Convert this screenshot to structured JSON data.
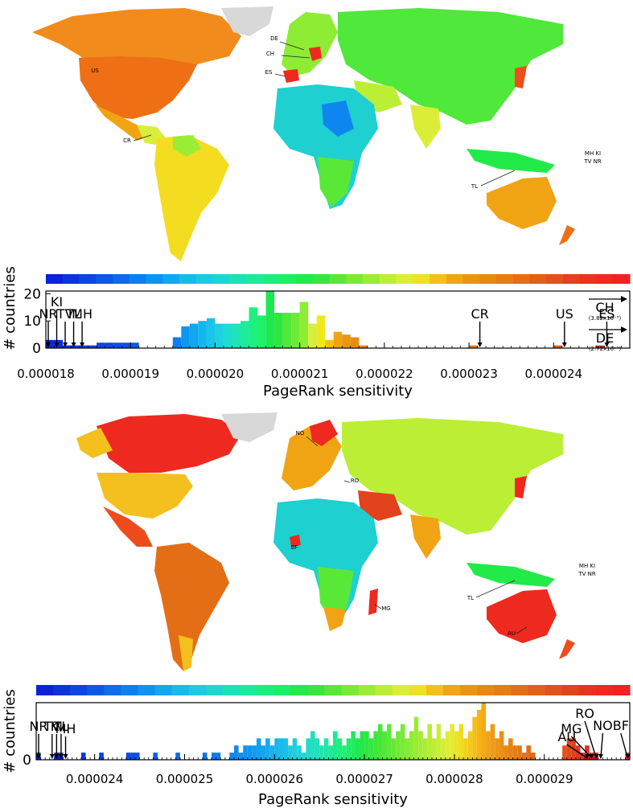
{
  "chart_data": [
    {
      "type": "bar",
      "panel": "top",
      "xlabel": "PageRank sensitivity",
      "ylabel": "# countries",
      "xlim": [
        1.8e-05,
        2.49e-05
      ],
      "ylim": [
        0,
        21
      ],
      "xticks": [
        "0.000018",
        "0.000019",
        "0.000020",
        "0.000021",
        "0.000022",
        "0.000023",
        "0.000024"
      ],
      "xtick_values": [
        1.8e-05,
        1.9e-05,
        2e-05,
        2.1e-05,
        2.2e-05,
        2.3e-05,
        2.4e-05
      ],
      "yticks": [
        "0",
        "10",
        "20"
      ],
      "ytick_values": [
        0,
        10,
        20
      ],
      "bin_width": 1e-07,
      "bins": [
        {
          "x": 1.8e-05,
          "count": 3,
          "color": "#0a28d8"
        },
        {
          "x": 1.81e-05,
          "count": 3,
          "color": "#0a2cdc"
        },
        {
          "x": 1.82e-05,
          "count": 1,
          "color": "#0c34de"
        },
        {
          "x": 1.83e-05,
          "count": 1,
          "color": "#0c38e0"
        },
        {
          "x": 1.84e-05,
          "count": 1,
          "color": "#0c3ce0"
        },
        {
          "x": 1.85e-05,
          "count": 1,
          "color": "#0c40e2"
        },
        {
          "x": 1.86e-05,
          "count": 2,
          "color": "#0c44e4"
        },
        {
          "x": 1.87e-05,
          "count": 2,
          "color": "#0c48e4"
        },
        {
          "x": 1.88e-05,
          "count": 2,
          "color": "#0c4ce6"
        },
        {
          "x": 1.89e-05,
          "count": 2,
          "color": "#0c50e8"
        },
        {
          "x": 1.9e-05,
          "count": 2,
          "color": "#0c56e8"
        },
        {
          "x": 1.95e-05,
          "count": 4,
          "color": "#0c7ef0"
        },
        {
          "x": 1.96e-05,
          "count": 8,
          "color": "#0c96f0"
        },
        {
          "x": 1.97e-05,
          "count": 9,
          "color": "#10a6f0"
        },
        {
          "x": 1.98e-05,
          "count": 10,
          "color": "#14b6ee"
        },
        {
          "x": 1.99e-05,
          "count": 11,
          "color": "#18c4ea"
        },
        {
          "x": 2e-05,
          "count": 9,
          "color": "#1ed0e2"
        },
        {
          "x": 2.01e-05,
          "count": 9,
          "color": "#1edcd0"
        },
        {
          "x": 2.02e-05,
          "count": 9,
          "color": "#1ee4b8"
        },
        {
          "x": 2.03e-05,
          "count": 10,
          "color": "#1eec9c"
        },
        {
          "x": 2.04e-05,
          "count": 15,
          "color": "#1ef080"
        },
        {
          "x": 2.05e-05,
          "count": 12,
          "color": "#1ef068"
        },
        {
          "x": 2.06e-05,
          "count": 21,
          "color": "#1ee850"
        },
        {
          "x": 2.07e-05,
          "count": 13,
          "color": "#2ee63e"
        },
        {
          "x": 2.08e-05,
          "count": 13,
          "color": "#50e83a"
        },
        {
          "x": 2.09e-05,
          "count": 13,
          "color": "#6cea38"
        },
        {
          "x": 2.1e-05,
          "count": 17,
          "color": "#8eec34"
        },
        {
          "x": 2.11e-05,
          "count": 9,
          "color": "#d6ee3c"
        },
        {
          "x": 2.12e-05,
          "count": 12,
          "color": "#f0e81c"
        },
        {
          "x": 2.13e-05,
          "count": 3,
          "color": "#f4c018"
        },
        {
          "x": 2.14e-05,
          "count": 6,
          "color": "#f0a414"
        },
        {
          "x": 2.15e-05,
          "count": 5,
          "color": "#ec9612"
        },
        {
          "x": 2.16e-05,
          "count": 4,
          "color": "#ea8c12"
        },
        {
          "x": 2.17e-05,
          "count": 1,
          "color": "#e88412"
        },
        {
          "x": 2.3e-05,
          "count": 1,
          "color": "#e67a14"
        },
        {
          "x": 2.4e-05,
          "count": 1,
          "color": "#e25a14"
        },
        {
          "x": 2.45e-05,
          "count": 1,
          "color": "#e2321a"
        }
      ],
      "colorbar": [
        "#0b22d8",
        "#0c34dc",
        "#0c46e2",
        "#0c58e6",
        "#0c6cea",
        "#0c80ee",
        "#0e94f0",
        "#12a8ef",
        "#18baea",
        "#1ccae2",
        "#1ed6d0",
        "#1ee0b6",
        "#1ee89a",
        "#1eec7e",
        "#1eee62",
        "#22ea48",
        "#3ae63c",
        "#5ae838",
        "#7aea36",
        "#9aec34",
        "#bcee36",
        "#daee38",
        "#f0e028",
        "#f4c01e",
        "#f0a416",
        "#ec9412",
        "#e88812",
        "#e67c14",
        "#e46e16",
        "#e26018",
        "#e2521a",
        "#e2421c",
        "#e8341e",
        "#ee2a20",
        "#f02222"
      ],
      "annotations": [
        {
          "label": "NR",
          "tip": 1.8e-05,
          "head": 1.8e-05,
          "level": "mid"
        },
        {
          "label": "KI",
          "tip": 1.81e-05,
          "head": 1.82e-05,
          "level": "high"
        },
        {
          "label": "TV",
          "tip": 1.82e-05,
          "head": 1.84e-05,
          "level": "mid"
        },
        {
          "label": "TL",
          "tip": 1.83e-05,
          "head": 1.86e-05,
          "level": "mid"
        },
        {
          "label": "MH",
          "tip": 1.84e-05,
          "head": 1.89e-05,
          "level": "mid"
        },
        {
          "label": "CR",
          "tip": 2.31e-05,
          "head": 2.31e-05,
          "level": "mid"
        },
        {
          "label": "US",
          "tip": 2.41e-05,
          "head": 2.41e-05,
          "level": "mid"
        },
        {
          "label": "ES",
          "tip": 2.46e-05,
          "head": 2.46e-05,
          "level": "mid"
        }
      ],
      "offscale": [
        {
          "label": "CH",
          "value": "(3.82x10⁻⁵)"
        },
        {
          "label": "DE",
          "value": "(2.72x10⁻⁵)"
        }
      ],
      "map_labels": [
        "DE",
        "CH",
        "ES",
        "US",
        "CR",
        "TL",
        "MH KI",
        "TV NR"
      ]
    },
    {
      "type": "bar",
      "panel": "bottom",
      "xlabel": "PageRank sensitivity",
      "ylabel": "# countries",
      "xlim": [
        2.335e-05,
        2.995e-05
      ],
      "ylim": [
        0,
        8
      ],
      "xticks": [
        "0.000024",
        "0.000025",
        "0.000026",
        "0.000027",
        "0.000028",
        "0.000029"
      ],
      "xtick_values": [
        2.4e-05,
        2.5e-05,
        2.6e-05,
        2.7e-05,
        2.8e-05,
        2.9e-05
      ],
      "yticks": [
        "0"
      ],
      "ytick_values": [
        0
      ],
      "bin_width": 5e-08,
      "bins": [
        {
          "x": 2.335e-05,
          "count": 1,
          "color": "#0a28d8"
        },
        {
          "x": 2.355e-05,
          "count": 1,
          "color": "#0a2cdc"
        },
        {
          "x": 2.36e-05,
          "count": 1,
          "color": "#0c30dc"
        },
        {
          "x": 2.385e-05,
          "count": 1,
          "color": "#0c36de"
        },
        {
          "x": 2.405e-05,
          "count": 1,
          "color": "#0c3ce0"
        },
        {
          "x": 2.435e-05,
          "count": 1,
          "color": "#0c4ae4"
        },
        {
          "x": 2.44e-05,
          "count": 1,
          "color": "#0c4ee6"
        },
        {
          "x": 2.445e-05,
          "count": 1,
          "color": "#0c52e6"
        },
        {
          "x": 2.465e-05,
          "count": 1,
          "color": "#0c5ce8"
        },
        {
          "x": 2.49e-05,
          "count": 1,
          "color": "#0c68ea"
        },
        {
          "x": 2.52e-05,
          "count": 1,
          "color": "#0c74ec"
        },
        {
          "x": 2.53e-05,
          "count": 1,
          "color": "#0c7aee"
        },
        {
          "x": 2.535e-05,
          "count": 1,
          "color": "#0c7eee"
        },
        {
          "x": 2.55e-05,
          "count": 1,
          "color": "#0e86f0"
        },
        {
          "x": 2.555e-05,
          "count": 2,
          "color": "#0e8af0"
        },
        {
          "x": 2.56e-05,
          "count": 1,
          "color": "#0e8ef0"
        },
        {
          "x": 2.565e-05,
          "count": 2,
          "color": "#1092f0"
        },
        {
          "x": 2.57e-05,
          "count": 2,
          "color": "#1096f0"
        },
        {
          "x": 2.575e-05,
          "count": 2,
          "color": "#129af0"
        },
        {
          "x": 2.58e-05,
          "count": 3,
          "color": "#12a0f0"
        },
        {
          "x": 2.585e-05,
          "count": 2,
          "color": "#14a6ee"
        },
        {
          "x": 2.59e-05,
          "count": 3,
          "color": "#14aaee"
        },
        {
          "x": 2.595e-05,
          "count": 2,
          "color": "#16b0ee"
        },
        {
          "x": 2.6e-05,
          "count": 3,
          "color": "#18b6ea"
        },
        {
          "x": 2.605e-05,
          "count": 3,
          "color": "#18bce8"
        },
        {
          "x": 2.61e-05,
          "count": 3,
          "color": "#1ac2e6"
        },
        {
          "x": 2.615e-05,
          "count": 2,
          "color": "#1cc8e2"
        },
        {
          "x": 2.62e-05,
          "count": 3,
          "color": "#1ccee0"
        },
        {
          "x": 2.625e-05,
          "count": 2,
          "color": "#1ed4da"
        },
        {
          "x": 2.63e-05,
          "count": 1,
          "color": "#1ed8d2"
        },
        {
          "x": 2.635e-05,
          "count": 3,
          "color": "#1edccc"
        },
        {
          "x": 2.64e-05,
          "count": 4,
          "color": "#1ee0c2"
        },
        {
          "x": 2.645e-05,
          "count": 3,
          "color": "#1ee2b8"
        },
        {
          "x": 2.65e-05,
          "count": 2,
          "color": "#1ee6ae"
        },
        {
          "x": 2.655e-05,
          "count": 3,
          "color": "#1ee8a4"
        },
        {
          "x": 2.66e-05,
          "count": 2,
          "color": "#1eea98"
        },
        {
          "x": 2.665e-05,
          "count": 4,
          "color": "#1eec8c"
        },
        {
          "x": 2.67e-05,
          "count": 3,
          "color": "#1eee80"
        },
        {
          "x": 2.675e-05,
          "count": 2,
          "color": "#1eee74"
        },
        {
          "x": 2.68e-05,
          "count": 3,
          "color": "#1eee68"
        },
        {
          "x": 2.685e-05,
          "count": 4,
          "color": "#1eec5c"
        },
        {
          "x": 2.69e-05,
          "count": 3,
          "color": "#1eea50"
        },
        {
          "x": 2.695e-05,
          "count": 4,
          "color": "#22e848"
        },
        {
          "x": 2.7e-05,
          "count": 4,
          "color": "#2ae842"
        },
        {
          "x": 2.705e-05,
          "count": 3,
          "color": "#34e63e"
        },
        {
          "x": 2.71e-05,
          "count": 4,
          "color": "#3ee63c"
        },
        {
          "x": 2.715e-05,
          "count": 5,
          "color": "#48e63a"
        },
        {
          "x": 2.72e-05,
          "count": 4,
          "color": "#52e838"
        },
        {
          "x": 2.725e-05,
          "count": 5,
          "color": "#5ce838"
        },
        {
          "x": 2.73e-05,
          "count": 3,
          "color": "#66e836"
        },
        {
          "x": 2.735e-05,
          "count": 4,
          "color": "#70ea36"
        },
        {
          "x": 2.74e-05,
          "count": 5,
          "color": "#7aea36"
        },
        {
          "x": 2.745e-05,
          "count": 3,
          "color": "#84ea34"
        },
        {
          "x": 2.75e-05,
          "count": 4,
          "color": "#8eec34"
        },
        {
          "x": 2.755e-05,
          "count": 6,
          "color": "#98ec34"
        },
        {
          "x": 2.76e-05,
          "count": 4,
          "color": "#a2ec34"
        },
        {
          "x": 2.765e-05,
          "count": 3,
          "color": "#acec36"
        },
        {
          "x": 2.77e-05,
          "count": 5,
          "color": "#b6ee36"
        },
        {
          "x": 2.775e-05,
          "count": 3,
          "color": "#c0ee36"
        },
        {
          "x": 2.78e-05,
          "count": 5,
          "color": "#caee38"
        },
        {
          "x": 2.785e-05,
          "count": 3,
          "color": "#d4ee38"
        },
        {
          "x": 2.79e-05,
          "count": 4,
          "color": "#deee38"
        },
        {
          "x": 2.795e-05,
          "count": 5,
          "color": "#e6ea30"
        },
        {
          "x": 2.8e-05,
          "count": 4,
          "color": "#ece428"
        },
        {
          "x": 2.805e-05,
          "count": 5,
          "color": "#f0dc22"
        },
        {
          "x": 2.81e-05,
          "count": 3,
          "color": "#f2d21e"
        },
        {
          "x": 2.815e-05,
          "count": 4,
          "color": "#f4c81c"
        },
        {
          "x": 2.82e-05,
          "count": 6,
          "color": "#f4be1a"
        },
        {
          "x": 2.825e-05,
          "count": 7,
          "color": "#f4b418"
        },
        {
          "x": 2.83e-05,
          "count": 8,
          "color": "#f2aa16"
        },
        {
          "x": 2.835e-05,
          "count": 4,
          "color": "#f0a214"
        },
        {
          "x": 2.84e-05,
          "count": 5,
          "color": "#ee9c14"
        },
        {
          "x": 2.845e-05,
          "count": 3,
          "color": "#ec9612"
        },
        {
          "x": 2.85e-05,
          "count": 4,
          "color": "#ea9012"
        },
        {
          "x": 2.855e-05,
          "count": 2,
          "color": "#ea8a12"
        },
        {
          "x": 2.86e-05,
          "count": 3,
          "color": "#e88412"
        },
        {
          "x": 2.865e-05,
          "count": 2,
          "color": "#e67e14"
        },
        {
          "x": 2.87e-05,
          "count": 2,
          "color": "#e67816"
        },
        {
          "x": 2.875e-05,
          "count": 1,
          "color": "#e47216"
        },
        {
          "x": 2.88e-05,
          "count": 2,
          "color": "#e46c16"
        },
        {
          "x": 2.885e-05,
          "count": 1,
          "color": "#e46618"
        },
        {
          "x": 2.92e-05,
          "count": 2,
          "color": "#e25018"
        },
        {
          "x": 2.925e-05,
          "count": 3,
          "color": "#e2481a"
        },
        {
          "x": 2.93e-05,
          "count": 3,
          "color": "#e2401a"
        },
        {
          "x": 2.935e-05,
          "count": 2,
          "color": "#e4381c"
        },
        {
          "x": 2.94e-05,
          "count": 1,
          "color": "#e8321e"
        },
        {
          "x": 2.945e-05,
          "count": 2,
          "color": "#ec2c20"
        },
        {
          "x": 2.95e-05,
          "count": 1,
          "color": "#ee2820"
        },
        {
          "x": 2.955e-05,
          "count": 1,
          "color": "#f02422"
        },
        {
          "x": 2.99e-05,
          "count": 1,
          "color": "#f02222"
        }
      ],
      "colorbar": [
        "#0b22d8",
        "#0c34dc",
        "#0c46e2",
        "#0c58e6",
        "#0c6cea",
        "#0c80ee",
        "#0e94f0",
        "#12a8ef",
        "#18baea",
        "#1ccae2",
        "#1ed6d0",
        "#1ee0b6",
        "#1ee89a",
        "#1eec7e",
        "#1eee62",
        "#22ea48",
        "#3ae63c",
        "#5ae838",
        "#7aea36",
        "#9aec34",
        "#bcee36",
        "#daee38",
        "#f0e028",
        "#f4c01e",
        "#f0a416",
        "#ec9412",
        "#e88812",
        "#e67c14",
        "#e46e16",
        "#e26018",
        "#e2521a",
        "#e2421c",
        "#e8341e",
        "#ee2a20",
        "#f02222"
      ],
      "annotations": [
        {
          "label": "NR",
          "tip": 2.335e-05,
          "head": 2.335e-05
        },
        {
          "label": "TV",
          "tip": 2.35e-05,
          "head": 2.365e-05
        },
        {
          "label": "KI",
          "tip": 2.355e-05,
          "head": 2.385e-05
        },
        {
          "label": "TL",
          "tip": 2.36e-05,
          "head": 2.405e-05
        },
        {
          "label": "MH",
          "tip": 2.365e-05,
          "head": 2.445e-05
        },
        {
          "label": "AU",
          "tip": 2.945e-05,
          "head": 2.925e-05
        },
        {
          "label": "MG",
          "tip": 2.95e-05,
          "head": 2.93e-05
        },
        {
          "label": "RO",
          "tip": 2.955e-05,
          "head": 2.945e-05
        },
        {
          "label": "NO",
          "tip": 2.96e-05,
          "head": 2.965e-05
        },
        {
          "label": "BF",
          "tip": 2.99e-05,
          "head": 2.985e-05
        }
      ],
      "map_labels": [
        "NO",
        "RO",
        "BF",
        "MG",
        "AU",
        "TL",
        "MH KI",
        "TV NR"
      ]
    }
  ],
  "colors": {
    "ocean": "#ffffff",
    "greenland": "#d8d8d8",
    "axis": "#000000"
  }
}
